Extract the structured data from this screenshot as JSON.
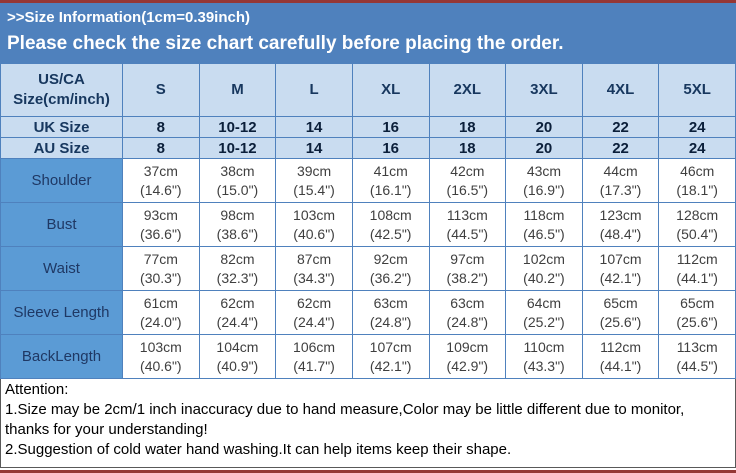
{
  "colors": {
    "accent_line": "#953735",
    "banner_bg": "#4F81BD",
    "banner_text": "#FFFFFF",
    "header_bg": "#C9DCF0",
    "header_text": "#17375E",
    "measure_label_bg": "#5B9BD5",
    "measure_text": "#3F3F3F",
    "table_border": "#4F81BD",
    "cell_bg": "#FFFFFF"
  },
  "banner": {
    "title": ">>Size Information(1cm=0.39inch)",
    "subtitle": "Please check the size chart carefully before placing the order."
  },
  "size_table": {
    "corner_header": "US/CA Size(cm/inch)",
    "columns": [
      "S",
      "M",
      "L",
      "XL",
      "2XL",
      "3XL",
      "4XL",
      "5XL"
    ],
    "size_rows": [
      {
        "label": "UK Size",
        "values": [
          "8",
          "10-12",
          "14",
          "16",
          "18",
          "20",
          "22",
          "24"
        ]
      },
      {
        "label": "AU Size",
        "values": [
          "8",
          "10-12",
          "14",
          "16",
          "18",
          "20",
          "22",
          "24"
        ]
      }
    ],
    "measurement_rows": [
      {
        "label": "Shoulder",
        "cells": [
          {
            "cm": "37cm",
            "inch": "(14.6\")"
          },
          {
            "cm": "38cm",
            "inch": "(15.0\")"
          },
          {
            "cm": "39cm",
            "inch": "(15.4\")"
          },
          {
            "cm": "41cm",
            "inch": "(16.1\")"
          },
          {
            "cm": "42cm",
            "inch": "(16.5\")"
          },
          {
            "cm": "43cm",
            "inch": "(16.9\")"
          },
          {
            "cm": "44cm",
            "inch": "(17.3\")"
          },
          {
            "cm": "46cm",
            "inch": "(18.1\")"
          }
        ]
      },
      {
        "label": "Bust",
        "cells": [
          {
            "cm": "93cm",
            "inch": "(36.6\")"
          },
          {
            "cm": "98cm",
            "inch": "(38.6\")"
          },
          {
            "cm": "103cm",
            "inch": "(40.6\")"
          },
          {
            "cm": "108cm",
            "inch": "(42.5\")"
          },
          {
            "cm": "113cm",
            "inch": "(44.5\")"
          },
          {
            "cm": "118cm",
            "inch": "(46.5\")"
          },
          {
            "cm": "123cm",
            "inch": "(48.4\")"
          },
          {
            "cm": "128cm",
            "inch": "(50.4\")"
          }
        ]
      },
      {
        "label": "Waist",
        "cells": [
          {
            "cm": "77cm",
            "inch": "(30.3\")"
          },
          {
            "cm": "82cm",
            "inch": "(32.3\")"
          },
          {
            "cm": "87cm",
            "inch": "(34.3\")"
          },
          {
            "cm": "92cm",
            "inch": "(36.2\")"
          },
          {
            "cm": "97cm",
            "inch": "(38.2\")"
          },
          {
            "cm": "102cm",
            "inch": "(40.2\")"
          },
          {
            "cm": "107cm",
            "inch": "(42.1\")"
          },
          {
            "cm": "112cm",
            "inch": "(44.1\")"
          }
        ]
      },
      {
        "label": "Sleeve Length",
        "cells": [
          {
            "cm": "61cm",
            "inch": "(24.0\")"
          },
          {
            "cm": "62cm",
            "inch": "(24.4\")"
          },
          {
            "cm": "62cm",
            "inch": "(24.4\")"
          },
          {
            "cm": "63cm",
            "inch": "(24.8\")"
          },
          {
            "cm": "63cm",
            "inch": "(24.8\")"
          },
          {
            "cm": "64cm",
            "inch": "(25.2\")"
          },
          {
            "cm": "65cm",
            "inch": "(25.6\")"
          },
          {
            "cm": "65cm",
            "inch": "(25.6\")"
          }
        ]
      },
      {
        "label": "BackLength",
        "cells": [
          {
            "cm": "103cm",
            "inch": "(40.6\")"
          },
          {
            "cm": "104cm",
            "inch": "(40.9\")"
          },
          {
            "cm": "106cm",
            "inch": "(41.7\")"
          },
          {
            "cm": "107cm",
            "inch": "(42.1\")"
          },
          {
            "cm": "109cm",
            "inch": "(42.9\")"
          },
          {
            "cm": "110cm",
            "inch": "(43.3\")"
          },
          {
            "cm": "112cm",
            "inch": "(44.1\")"
          },
          {
            "cm": "113cm",
            "inch": "(44.5\")"
          }
        ]
      }
    ]
  },
  "notes": {
    "lines": [
      "Attention:",
      "1.Size may be 2cm/1 inch inaccuracy due to hand measure,Color may be little different due to monitor, thanks for your understanding!",
      "2.Suggestion of cold water hand washing.It can help items keep their shape."
    ]
  }
}
